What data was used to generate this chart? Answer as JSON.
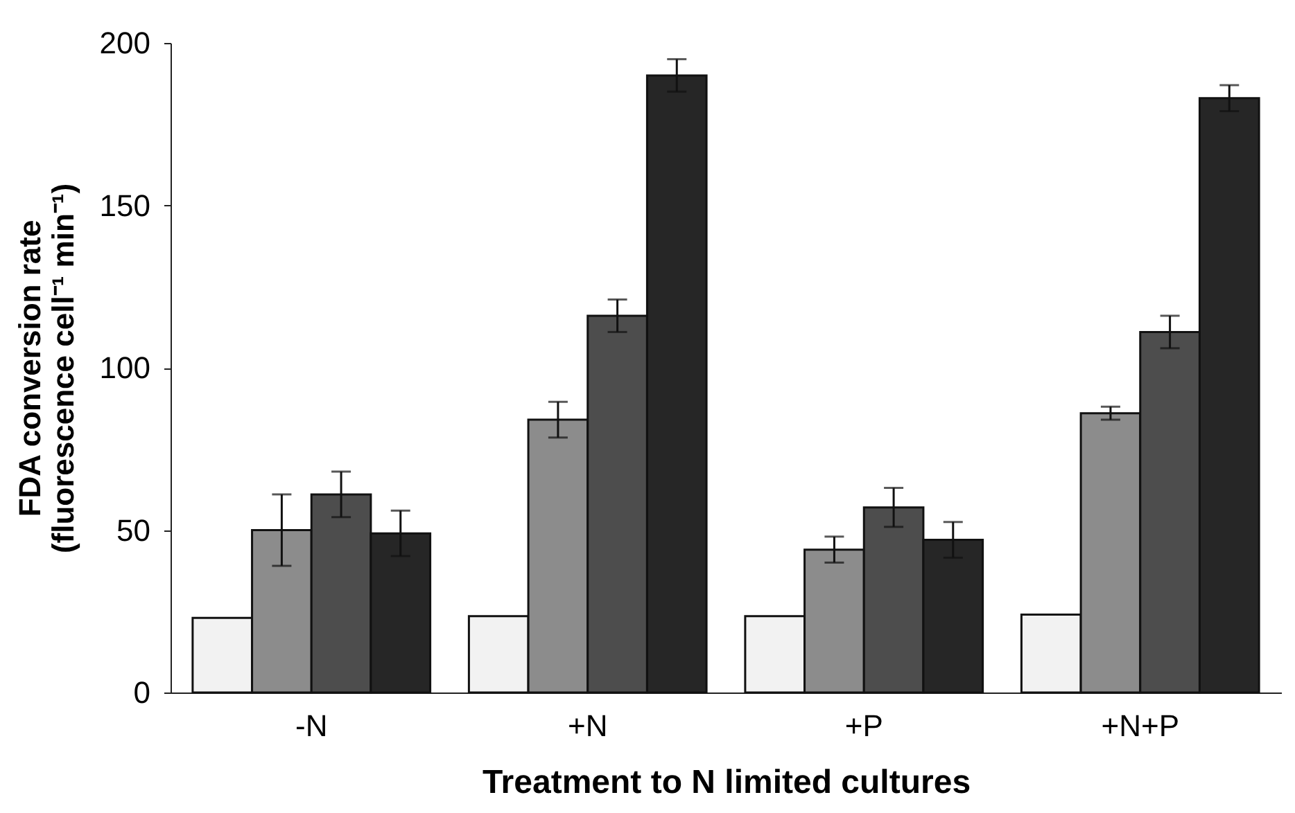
{
  "chart_data": {
    "type": "bar",
    "xlabel": "Treatment to N limited cultures",
    "ylabel": "FDA conversion rate\n(fluorescence cell⁻¹ min⁻¹)",
    "categories": [
      "-N",
      "+N",
      "+P",
      "+N+P"
    ],
    "series": [
      {
        "color": "#f2f2f2",
        "values": [
          23,
          23.5,
          23.5,
          24
        ]
      },
      {
        "color": "#8c8c8c",
        "values": [
          50,
          84,
          44,
          86
        ],
        "errors": [
          11,
          5.5,
          4,
          2
        ]
      },
      {
        "color": "#4d4d4d",
        "values": [
          61,
          116,
          57,
          111
        ],
        "errors": [
          7,
          5,
          6,
          5
        ]
      },
      {
        "color": "#262626",
        "values": [
          49,
          190,
          47,
          183
        ],
        "errors": [
          7,
          5,
          5.5,
          4
        ]
      }
    ],
    "ylim": [
      0,
      200
    ],
    "yticks": [
      0,
      50,
      100,
      150,
      200
    ],
    "grid": false
  }
}
